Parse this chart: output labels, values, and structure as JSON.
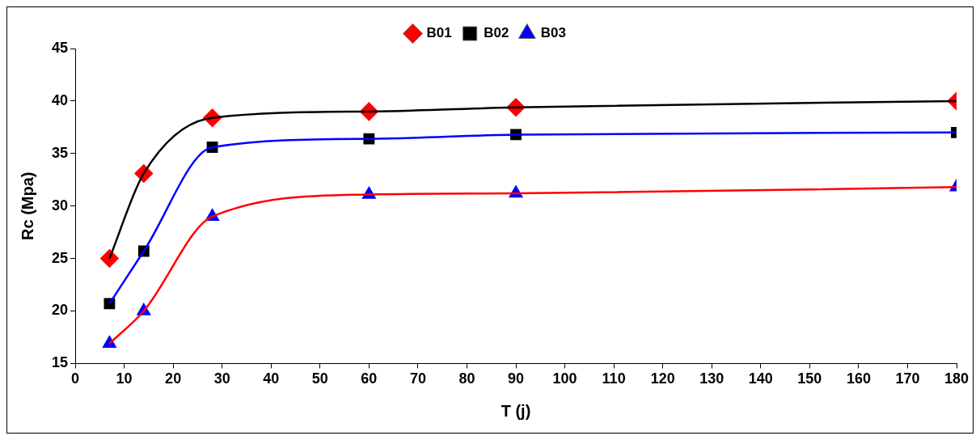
{
  "chart_data": {
    "type": "line",
    "xlabel": "T (j)",
    "ylabel": "Rc (Mpa)",
    "xlim": [
      0,
      180
    ],
    "xticks": [
      0,
      10,
      20,
      30,
      40,
      50,
      60,
      70,
      80,
      90,
      100,
      110,
      120,
      130,
      140,
      150,
      160,
      170,
      180
    ],
    "ylim": [
      15,
      45
    ],
    "yticks": [
      15,
      20,
      25,
      30,
      35,
      40,
      45
    ],
    "grid": false,
    "legend": "top",
    "x": [
      7,
      14,
      28,
      60,
      90,
      180
    ],
    "series": [
      {
        "name": "B01",
        "color": "#000000",
        "colors": [
          "#ff0000",
          "#ff0000",
          "#ff0000",
          "#ff0000",
          "#ff0000",
          "#ff0000"
        ],
        "marker": "diamond",
        "values": [
          25.0,
          33.1,
          38.4,
          39.0,
          39.4,
          40.0
        ]
      },
      {
        "name": "B02",
        "color": "#0000ff",
        "colors": [
          "#000000",
          "#000000",
          "#000000",
          "#000000",
          "#000000",
          "#000000"
        ],
        "marker": "square",
        "values": [
          20.7,
          25.7,
          35.6,
          36.4,
          36.8,
          37.0
        ]
      },
      {
        "name": "B03",
        "color": "#ff0000",
        "colors": [
          "#0000ff",
          "#0000ff",
          "#0000ff",
          "#0000ff",
          "#0000ff",
          "#0000ff"
        ],
        "marker": "triangle",
        "values": [
          16.9,
          20.0,
          29.0,
          31.1,
          31.2,
          31.8
        ]
      }
    ]
  }
}
